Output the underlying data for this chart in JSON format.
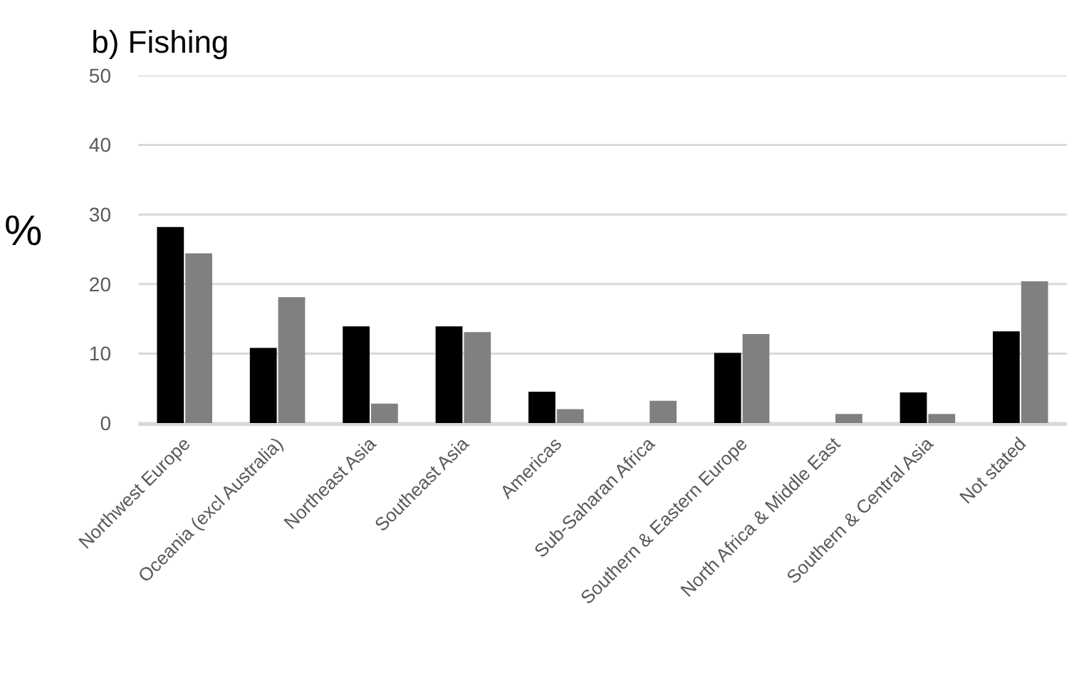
{
  "chart_data": {
    "type": "bar",
    "title": "b) Fishing",
    "ylabel": "%",
    "categories": [
      "Northwest Europe",
      "Oceania (excl Australia)",
      "Northeast Asia",
      "Southeast Asia",
      "Americas",
      "Sub-Saharan Africa",
      "Southern & Eastern Europe",
      "North Africa & Middle East",
      "Southern & Central Asia",
      "Not stated"
    ],
    "series": [
      {
        "color": "#000000",
        "values": [
          28.2,
          10.8,
          13.9,
          13.9,
          4.5,
          0,
          10.1,
          0,
          4.4,
          13.2
        ]
      },
      {
        "color": "#808080",
        "values": [
          24.4,
          18.1,
          2.8,
          13.1,
          2.0,
          3.2,
          12.8,
          1.3,
          1.3,
          20.4
        ]
      }
    ],
    "ylim": [
      0,
      50
    ],
    "yticks": [
      0,
      10,
      20,
      30,
      40,
      50
    ],
    "grid": "y"
  }
}
